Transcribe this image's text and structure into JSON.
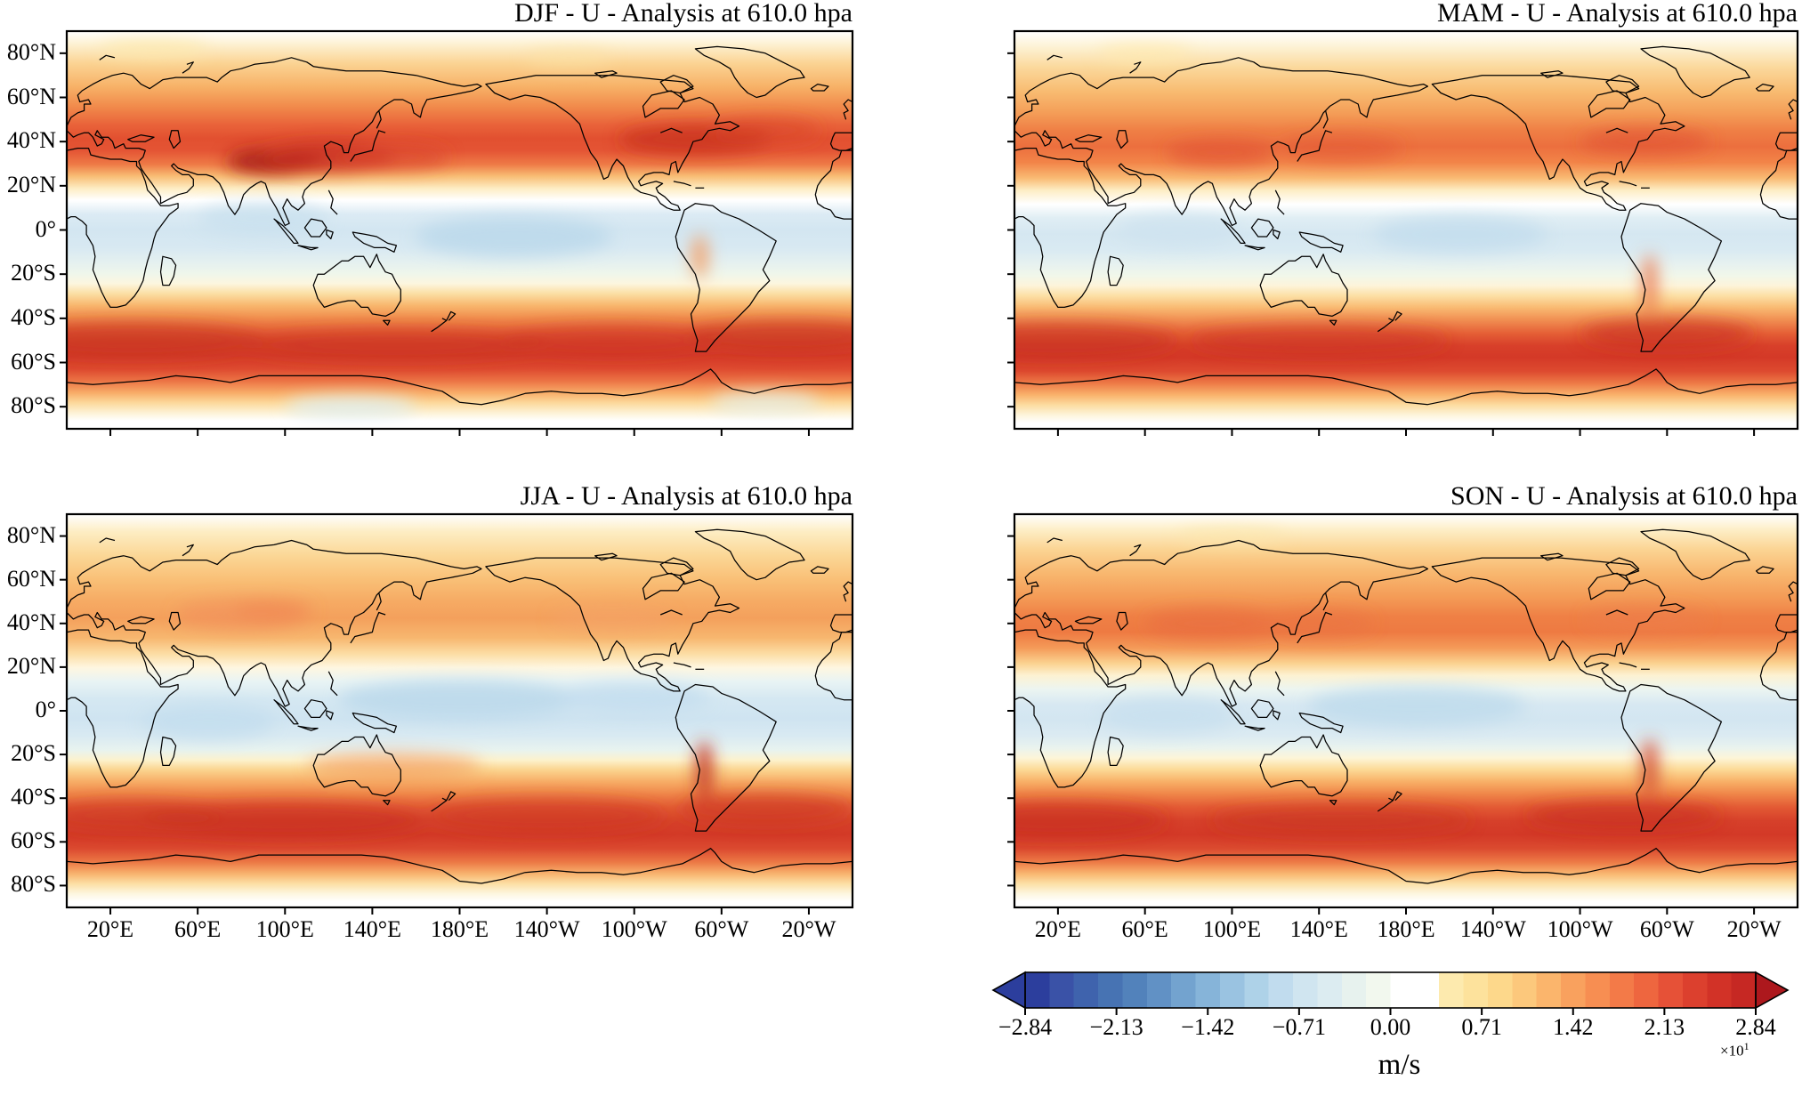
{
  "figure": {
    "description": "Seasonal maps of zonal wind U analysis at 610.0 hpa",
    "unit": "m/s"
  },
  "panels": [
    {
      "id": "DJF",
      "title": "DJF - U - Analysis at 610.0 hpa"
    },
    {
      "id": "MAM",
      "title": "MAM - U - Analysis at 610.0 hpa"
    },
    {
      "id": "JJA",
      "title": "JJA - U - Analysis at 610.0 hpa"
    },
    {
      "id": "SON",
      "title": "SON - U - Analysis at 610.0 hpa"
    }
  ],
  "axes": {
    "lat_ticks": [
      "80°N",
      "60°N",
      "40°N",
      "20°N",
      "0°",
      "20°S",
      "40°S",
      "60°S",
      "80°S"
    ],
    "lon_ticks": [
      "20°E",
      "60°E",
      "100°E",
      "140°E",
      "180°E",
      "140°W",
      "100°W",
      "60°W",
      "20°W"
    ]
  },
  "colorbar": {
    "tick_labels": [
      "−2.84",
      "−2.13",
      "−1.42",
      "−0.71",
      "0.00",
      "0.71",
      "1.42",
      "2.13",
      "2.84"
    ],
    "unit": "m/s",
    "multiplier": "×10",
    "exponent": "1",
    "coastline_color": "#000000",
    "arrow_left_color": "#2c3e9d",
    "arrow_right_color": "#ad181d",
    "colors": [
      "#2c3e9d",
      "#3a52a7",
      "#3f63ad",
      "#4773b3",
      "#5282bb",
      "#6191c5",
      "#73a3cf",
      "#86b4d9",
      "#9ac3e1",
      "#aed2e8",
      "#c1dcee",
      "#d0e5f0",
      "#dcecf1",
      "#e7f2ee",
      "#f2f8ee",
      "#ffffff",
      "#ffffff",
      "#fdeaae",
      "#fde29c",
      "#fdd88b",
      "#fcc87c",
      "#fbb56c",
      "#f9a15e",
      "#f78e52",
      "#f37a48",
      "#ee663f",
      "#e65137",
      "#dc402e",
      "#d23227",
      "#c62823"
    ]
  },
  "chart_data": {
    "type": "heatmap",
    "subtype": "filled_contour_world_maps",
    "variable": "U (zonal wind) - Analysis",
    "level_hpa": 610.0,
    "unit": "m/s",
    "scale_note": "colorbar tick labels are ×10¹ (true range −28.4 to 28.4 m/s)",
    "projection": "equirectangular",
    "lon_range_deg_east": [
      0,
      360
    ],
    "lat_range": [
      -90,
      90
    ],
    "colorbar_tick_values": [
      -28.4,
      -21.3,
      -14.2,
      -7.1,
      0.0,
      7.1,
      14.2,
      21.3,
      28.4
    ],
    "panels": [
      {
        "season": "DJF",
        "zonal_mean_u_estimate": {
          "lat": [
            80,
            60,
            40,
            30,
            20,
            0,
            -20,
            -40,
            -50,
            -60,
            -80
          ],
          "u_ms": [
            2,
            8,
            17,
            20,
            5,
            -5,
            1,
            15,
            22,
            12,
            0
          ]
        },
        "notable_features": [
          "dark red jet core over Tibet/East Asia ~30°N",
          "red core over North America/Atlantic ~40°N",
          "pale blue tropical easterlies",
          "strong circumpolar red band 40–60°S"
        ]
      },
      {
        "season": "MAM",
        "zonal_mean_u_estimate": {
          "lat": [
            80,
            60,
            40,
            30,
            20,
            0,
            -20,
            -40,
            -50,
            -60,
            -80
          ],
          "u_ms": [
            1,
            6,
            13,
            14,
            5,
            -5,
            2,
            15,
            22,
            12,
            0
          ]
        },
        "notable_features": [
          "moderate orange NH midlatitude band",
          "strong circumpolar red band 40–60°S"
        ]
      },
      {
        "season": "JJA",
        "zonal_mean_u_estimate": {
          "lat": [
            80,
            60,
            40,
            30,
            20,
            0,
            -20,
            -40,
            -50,
            -60,
            -80
          ],
          "u_ms": [
            2,
            5,
            9,
            8,
            0,
            -7,
            6,
            17,
            21,
            11,
            0
          ]
        },
        "notable_features": [
          "weak pale-orange NH band near 45°N",
          "wider/deeper blue tropical easterlies",
          "broad strong SH jet with dark streak along Andes ~20–35°S"
        ]
      },
      {
        "season": "SON",
        "zonal_mean_u_estimate": {
          "lat": [
            80,
            60,
            40,
            30,
            20,
            0,
            -20,
            -40,
            -50,
            -60,
            -80
          ],
          "u_ms": [
            2,
            6,
            12,
            12,
            3,
            -6,
            3,
            16,
            22,
            12,
            0
          ]
        },
        "notable_features": [
          "moderate NH orange band ~40°N",
          "strong SH circumpolar red band",
          "red streak along Andes"
        ]
      }
    ]
  }
}
